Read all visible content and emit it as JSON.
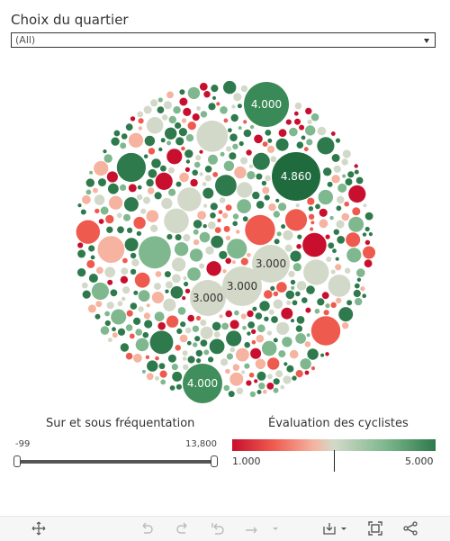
{
  "filter": {
    "title": "Choix du quartier",
    "selected": "(All)"
  },
  "bubble_labels": {
    "b1": "4.000",
    "b2": "4.860",
    "b3": "3.000",
    "b4": "3.000",
    "b5": "3.000",
    "b6": "4.000"
  },
  "slider": {
    "title": "Sur et sous fréquentation",
    "min_label": "-99",
    "max_label": "13,800"
  },
  "color_legend": {
    "title": "Évaluation des cyclistes",
    "min_label": "1.000",
    "max_label": "5.000",
    "colors": [
      "#c8102e",
      "#ef5a4e",
      "#f5b3a0",
      "#d3d9c9",
      "#7fb88e",
      "#2e7a4c"
    ]
  },
  "toolbar": {
    "icons": [
      "move-icon",
      "undo-icon",
      "redo-icon",
      "revert-icon",
      "refresh-icon",
      "download-icon",
      "fullscreen-icon",
      "share-icon"
    ]
  }
}
